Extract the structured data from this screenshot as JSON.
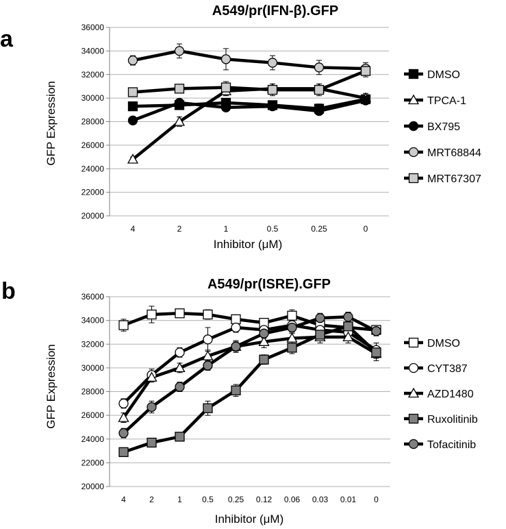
{
  "chart_data": [
    {
      "panel": "a",
      "type": "line",
      "title": "A549/pr(IFN-β).GFP",
      "xlabel": "Inhibitor (μM)",
      "ylabel": "GFP Expression",
      "categories": [
        "4",
        "2",
        "1",
        "0.5",
        "0.25",
        "0"
      ],
      "ylim": [
        20000,
        36000
      ],
      "ytick_step": 2000,
      "grid": true,
      "legend": "right",
      "series": [
        {
          "name": "DMSO",
          "marker": "square",
          "fill": "#000000",
          "values": [
            29300,
            29400,
            29600,
            29400,
            29100,
            29900
          ],
          "errors": [
            300,
            300,
            300,
            300,
            400,
            400
          ]
        },
        {
          "name": "TPCA-1",
          "marker": "triangle",
          "fill": "#ffffff",
          "values": [
            24800,
            28000,
            30600,
            30800,
            30800,
            30000
          ],
          "errors": [
            200,
            400,
            400,
            400,
            400,
            400
          ]
        },
        {
          "name": "BX795",
          "marker": "circle",
          "fill": "#000000",
          "values": [
            28100,
            29600,
            29200,
            29300,
            28900,
            29800
          ],
          "errors": [
            200,
            200,
            200,
            200,
            200,
            300
          ]
        },
        {
          "name": "MRT68844",
          "marker": "circle",
          "fill": "#cccccc",
          "values": [
            33200,
            34000,
            33300,
            33000,
            32600,
            32500
          ],
          "errors": [
            400,
            600,
            900,
            600,
            600,
            500
          ]
        },
        {
          "name": "MRT67307",
          "marker": "square",
          "fill": "#cccccc",
          "values": [
            30500,
            30800,
            30900,
            30700,
            30700,
            32300
          ],
          "errors": [
            300,
            300,
            500,
            500,
            500,
            500
          ]
        }
      ]
    },
    {
      "panel": "b",
      "type": "line",
      "title": "A549/pr(ISRE).GFP",
      "xlabel": "Inhibitor (μM)",
      "ylabel": "GFP Expression",
      "categories": [
        "4",
        "2",
        "1",
        "0.5",
        "0.25",
        "0.12",
        "0.06",
        "0.03",
        "0.01",
        "0"
      ],
      "ylim": [
        20000,
        36000
      ],
      "ytick_step": 2000,
      "grid": true,
      "legend": "right",
      "series": [
        {
          "name": "DMSO",
          "marker": "square",
          "fill": "#ffffff",
          "values": [
            33600,
            34500,
            34600,
            34500,
            34100,
            33800,
            34400,
            33600,
            33400,
            33200
          ],
          "errors": [
            500,
            700,
            300,
            400,
            300,
            300,
            500,
            300,
            300,
            300
          ]
        },
        {
          "name": "CYT387",
          "marker": "circle",
          "fill": "#ffffff",
          "values": [
            27000,
            29400,
            31300,
            32400,
            33400,
            33200,
            33600,
            33200,
            33000,
            31500
          ],
          "errors": [
            400,
            500,
            400,
            1000,
            400,
            400,
            400,
            500,
            400,
            600
          ]
        },
        {
          "name": "AZD1480",
          "marker": "triangle",
          "fill": "#ffffff",
          "values": [
            25800,
            29200,
            30000,
            31000,
            31800,
            32200,
            32500,
            32600,
            32600,
            31200
          ],
          "errors": [
            400,
            400,
            400,
            500,
            500,
            500,
            500,
            500,
            500,
            600
          ]
        },
        {
          "name": "Ruxolitinib",
          "marker": "square",
          "fill": "#808080",
          "values": [
            22900,
            23700,
            24200,
            26600,
            28100,
            30700,
            31700,
            32800,
            33500,
            31300
          ],
          "errors": [
            300,
            300,
            300,
            600,
            500,
            400,
            500,
            500,
            500,
            500
          ]
        },
        {
          "name": "Tofacitinib",
          "marker": "circle",
          "fill": "#808080",
          "values": [
            24500,
            26700,
            28400,
            30200,
            31800,
            32900,
            33400,
            34200,
            34300,
            33100
          ],
          "errors": [
            400,
            500,
            400,
            400,
            400,
            400,
            500,
            400,
            400,
            400
          ]
        }
      ]
    }
  ]
}
